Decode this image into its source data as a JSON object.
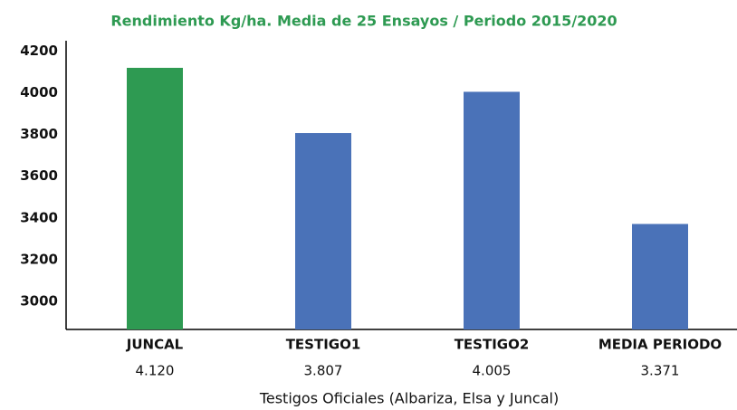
{
  "chart_data": {
    "type": "bar",
    "title": "Rendimiento Kg/ha. Media de 25 Ensayos / Periodo 2015/2020",
    "x_label": "Testigos Oficiales (Albariza, Elsa y Juncal)",
    "categories": [
      "JUNCAL",
      "TESTIGO1",
      "TESTIGO2",
      "MEDIA PERIODO"
    ],
    "values": [
      4120,
      3807,
      4005,
      3371
    ],
    "value_labels": [
      "4.120",
      "3.807",
      "4.005",
      "3.371"
    ],
    "colors": [
      "#2e9a52",
      "#4a72b8",
      "#4a72b8",
      "#4a72b8"
    ],
    "ylim": [
      2865,
      4250
    ],
    "yticks": [
      3000,
      3200,
      3400,
      3600,
      3800,
      4000,
      4200
    ],
    "grid": false
  }
}
